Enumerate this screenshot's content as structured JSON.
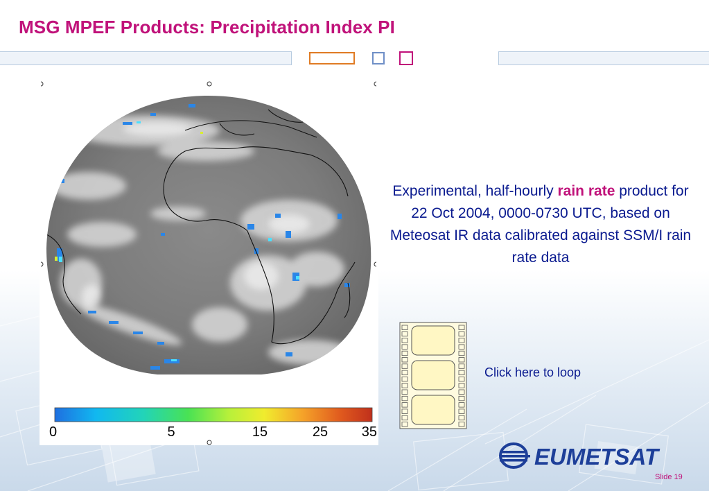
{
  "slide": {
    "title": "MSG MPEF Products: Precipitation Index PI",
    "number_label": "Slide 19"
  },
  "description": {
    "part1": "Experimental, half-hourly ",
    "highlight": "rain rate",
    "part2": " product for 22 Oct 2004, 0000-0730 UTC, based on Meteosat IR data calibrated against SSM/I rain rate data"
  },
  "colorbar": {
    "ticks": [
      {
        "label": "0",
        "value": 0
      },
      {
        "label": "5",
        "value": 5
      },
      {
        "label": "15",
        "value": 15
      },
      {
        "label": "25",
        "value": 25
      },
      {
        "label": "35",
        "value": 35
      }
    ],
    "colors": [
      "#1f6fe0",
      "#11b8f0",
      "#22d4b8",
      "#49e254",
      "#b8f03a",
      "#f0ec2e",
      "#f5a329",
      "#e05a1e",
      "#c0301c"
    ]
  },
  "loop_link": "Click here to loop",
  "logo": {
    "text": "EUMETSAT",
    "color": "#1d3f99"
  },
  "accent_colors": {
    "title": "#c0127a",
    "text": "#0a1a8f",
    "orange": "#e07b24",
    "blue": "#6f8fc7"
  },
  "icons": [
    "satellite-image",
    "film-strip-icon",
    "eumetsat-logo"
  ]
}
